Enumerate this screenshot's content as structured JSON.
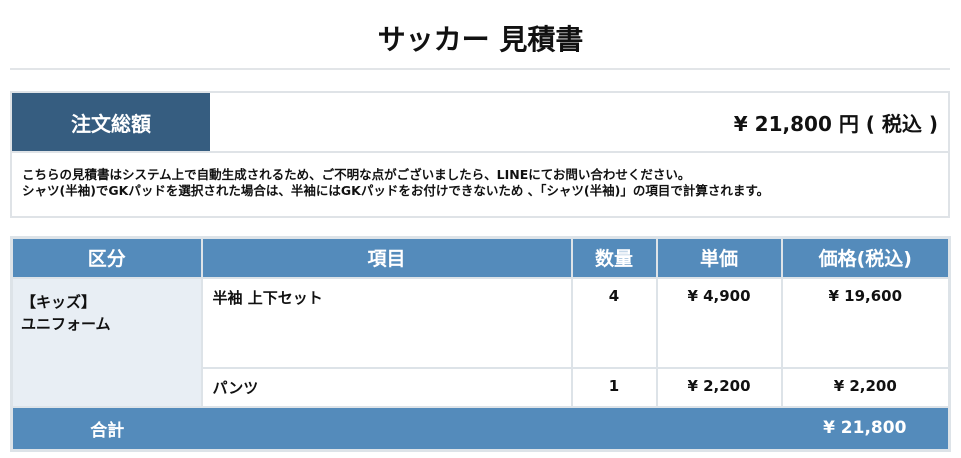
{
  "title": "サッカー 見積書",
  "order_total": {
    "label": "注文総額",
    "value": "¥ 21,800 円 ( 税込 )"
  },
  "notes": [
    "こちらの見積書はシステム上で自動生成されるため、ご不明な点がございましたら、LINEにてお問い合わせください。",
    "シャツ(半袖)でGKパッドを選択された場合は、半袖にはGKパッドをお付けできないため 、「シャツ(半袖)」の項目で計算されます。"
  ],
  "table": {
    "headers": [
      "区分",
      "項目",
      "数量",
      "単価",
      "価格(税込)"
    ],
    "category": [
      "【キッズ】",
      "ユニフォーム"
    ],
    "rows": [
      {
        "item": "半袖 上下セット",
        "qty": "4",
        "unit": "¥ 4,900",
        "price": "¥ 19,600"
      },
      {
        "item": "パンツ",
        "qty": "1",
        "unit": "¥ 2,200",
        "price": "¥ 2,200"
      }
    ],
    "total_label": "合計",
    "total_value": "¥ 21,800"
  },
  "colors": {
    "header": "#548bbb",
    "total_label_bg": "#365d80",
    "category_bg": "#e8eef4"
  }
}
